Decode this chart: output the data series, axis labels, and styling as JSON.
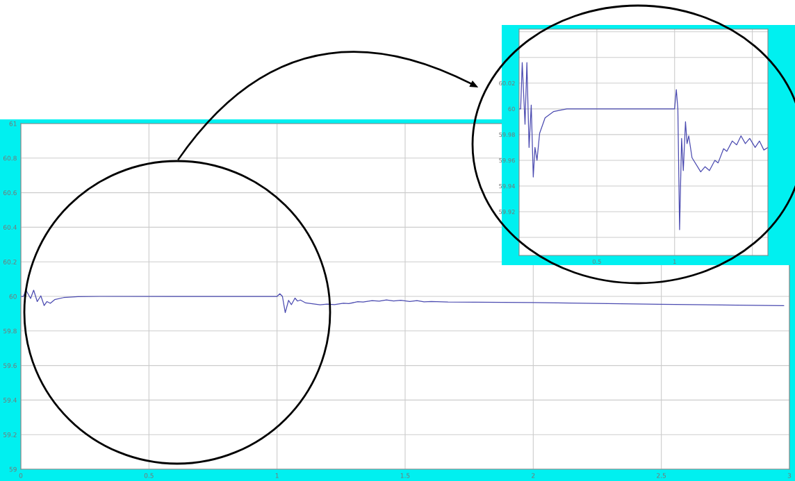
{
  "chart_data": [
    {
      "type": "line",
      "x": [
        0,
        0.01,
        0.02,
        0.038,
        0.05,
        0.064,
        0.078,
        0.091,
        0.102,
        0.115,
        0.132,
        0.167,
        0.223,
        0.307,
        0.6,
        1.0,
        1.011,
        1.021,
        1.032,
        1.045,
        1.056,
        1.07,
        1.08,
        1.091,
        1.112,
        1.168,
        1.196,
        1.224,
        1.259,
        1.28,
        1.315,
        1.336,
        1.371,
        1.399,
        1.427,
        1.455,
        1.483,
        1.518,
        1.546,
        1.574,
        1.602,
        1.667,
        1.993,
        2.342,
        2.489,
        2.792,
        2.978
      ],
      "series": [
        {
          "color": "#4a4ab0",
          "values": [
            60,
            60,
            60.036,
            59.988,
            60.036,
            59.97,
            60.003,
            59.947,
            59.97,
            59.96,
            59.981,
            59.993,
            59.998,
            60,
            60,
            60,
            60.015,
            60,
            59.906,
            59.977,
            59.952,
            59.99,
            59.973,
            59.979,
            59.962,
            59.951,
            59.955,
            59.952,
            59.96,
            59.958,
            59.969,
            59.967,
            59.975,
            59.972,
            59.979,
            59.973,
            59.977,
            59.97,
            59.975,
            59.968,
            59.97,
            59.967,
            59.964,
            59.957,
            59.954,
            59.949,
            59.946
          ]
        }
      ],
      "xlim": [
        0,
        3
      ],
      "ylim": [
        59,
        61
      ],
      "xticks": [
        0,
        0.5,
        1,
        1.5,
        2,
        2.5,
        3
      ],
      "yticks": [
        59,
        59.2,
        59.4,
        59.6,
        59.8,
        60,
        60.2,
        60.4,
        60.6,
        60.8,
        61
      ],
      "grid": true,
      "line_style": "solid",
      "marker": "none"
    },
    {
      "type": "line",
      "x": [
        0,
        0.01,
        0.02,
        0.038,
        0.05,
        0.064,
        0.078,
        0.091,
        0.102,
        0.115,
        0.132,
        0.167,
        0.223,
        0.307,
        0.6,
        1.0,
        1.011,
        1.021,
        1.032,
        1.045,
        1.056,
        1.07,
        1.08,
        1.091,
        1.112,
        1.168,
        1.196,
        1.224,
        1.259,
        1.28,
        1.315,
        1.336,
        1.371,
        1.399,
        1.427,
        1.455,
        1.483,
        1.518,
        1.546,
        1.574,
        1.6
      ],
      "series": [
        {
          "color": "#4a4ab0",
          "values": [
            60,
            60,
            60.036,
            59.988,
            60.036,
            59.97,
            60.003,
            59.947,
            59.97,
            59.96,
            59.981,
            59.993,
            59.998,
            60,
            60,
            60,
            60.015,
            60,
            59.906,
            59.977,
            59.952,
            59.99,
            59.973,
            59.979,
            59.962,
            59.951,
            59.955,
            59.952,
            59.96,
            59.958,
            59.969,
            59.967,
            59.975,
            59.972,
            59.979,
            59.973,
            59.977,
            59.97,
            59.975,
            59.968,
            59.97
          ]
        }
      ],
      "xlim": [
        0,
        1.6
      ],
      "ylim": [
        59.886,
        60.062
      ],
      "xticks": [
        {
          "value": 0.5,
          "label": "0.5"
        },
        {
          "value": 1,
          "label": "1"
        },
        {
          "value": 1.5,
          "label": null
        }
      ],
      "yticks": [
        {
          "value": 59.9,
          "label": null
        },
        {
          "value": 59.92,
          "label": "59.92"
        },
        {
          "value": 59.94,
          "label": "59.94"
        },
        {
          "value": 59.96,
          "label": "59.96"
        },
        {
          "value": 59.98,
          "label": "59.98"
        },
        {
          "value": 60,
          "label": "60"
        },
        {
          "value": 60.02,
          "label": "60.02"
        },
        {
          "value": 60.04,
          "label": null
        },
        {
          "value": 60.06,
          "label": null
        }
      ],
      "grid": true,
      "line_style": "solid",
      "marker": "none"
    }
  ]
}
